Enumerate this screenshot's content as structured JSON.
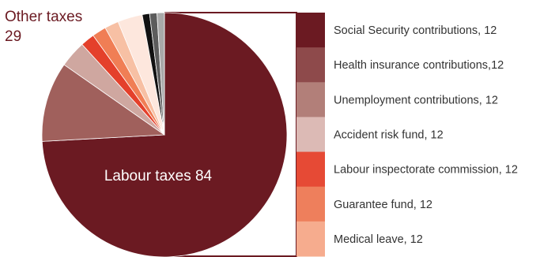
{
  "chart_data": {
    "type": "pie",
    "title": "",
    "slices": [
      {
        "label": "Labour taxes 84",
        "value": 84,
        "color": "#6b1a22"
      },
      {
        "label": "",
        "value": 12,
        "color": "#a0605c"
      },
      {
        "label": "",
        "value": 4,
        "color": "#cfa7a0"
      },
      {
        "label": "",
        "value": 2.1,
        "color": "#e4402b"
      },
      {
        "label": "",
        "value": 2.1,
        "color": "#f07e55"
      },
      {
        "label": "",
        "value": 2.1,
        "color": "#f7c0a4"
      },
      {
        "label": "",
        "value": 3.7,
        "color": "#fde7dd"
      },
      {
        "label": "",
        "value": 1.1,
        "color": "#111111"
      },
      {
        "label": "",
        "value": 1.1,
        "color": "#5c5c5c"
      },
      {
        "label": "",
        "value": 1.1,
        "color": "#a9a9a9"
      }
    ],
    "callout": {
      "line1": "Other taxes",
      "line2": "29",
      "color": "#6b1a22"
    },
    "legend": {
      "placement": "right",
      "entries": [
        {
          "label": "Social Security contributions, 12",
          "color": "#6b1a22"
        },
        {
          "label": "Health insurance contributions,12",
          "color": "#8e4a4b"
        },
        {
          "label": "Unemployment contributions, 12",
          "color": "#b27f79"
        },
        {
          "label": "Accident risk fund, 12",
          "color": "#dcbab5"
        },
        {
          "label": "Labour inspectorate commission, 12",
          "color": "#e64a35"
        },
        {
          "label": "Guarantee fund, 12",
          "color": "#ee7f5c"
        },
        {
          "label": "Medical leave, 12",
          "color": "#f6ac8e"
        }
      ]
    },
    "explode_border_color": "#6b1a22"
  }
}
